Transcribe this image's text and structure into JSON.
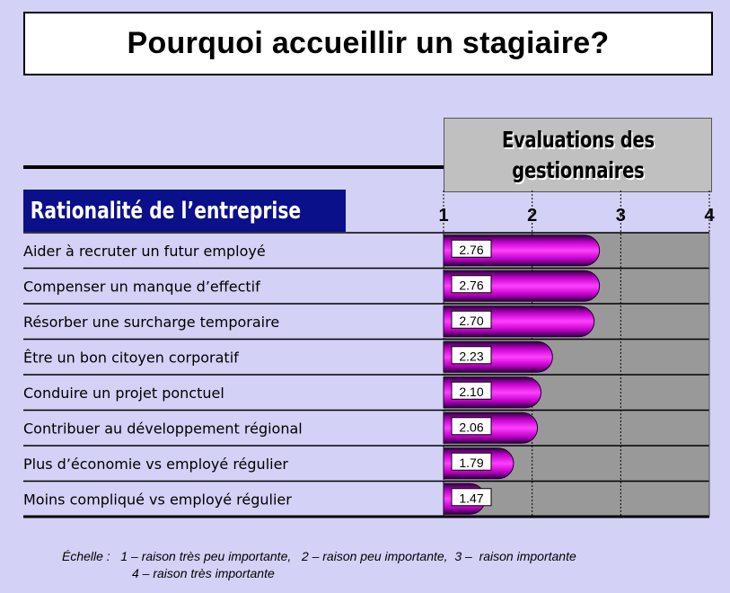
{
  "title": "Pourquoi accueillir un stagiaire?",
  "eval_header": {
    "line1": "Evaluations des",
    "line2": "gestionnaires"
  },
  "section_label": "Rationalité de l’entreprise",
  "footer": {
    "line1": "Échelle :   1 – raison très peu importante,   2 – raison peu importante,  3 –  raison importante",
    "line2": "4 – raison très importante"
  },
  "colors": {
    "background": "#d3d1f5",
    "bar": "#ff00ff",
    "bar_dark": "#2a0040",
    "plot_bg": "#999999",
    "label_block": "#0a0f8a"
  },
  "chart_data": {
    "type": "bar",
    "orientation": "horizontal",
    "xlim": [
      1,
      4
    ],
    "xticks": [
      "1",
      "2",
      "3",
      "4"
    ],
    "categories": [
      "Aider à recruter un futur employé",
      "Compenser un manque d’effectif",
      "Résorber une surcharge temporaire",
      "Être un bon citoyen corporatif",
      "Conduire un projet ponctuel",
      "Contribuer au développement régional",
      "Plus d’économie vs employé régulier",
      "Moins compliqué vs employé régulier"
    ],
    "values": [
      2.76,
      2.76,
      2.7,
      2.23,
      2.1,
      2.06,
      1.79,
      1.47
    ],
    "value_labels": [
      "2.76",
      "2.76",
      "2.70",
      "2.23",
      "2.10",
      "2.06",
      "1.79",
      "1.47"
    ]
  }
}
